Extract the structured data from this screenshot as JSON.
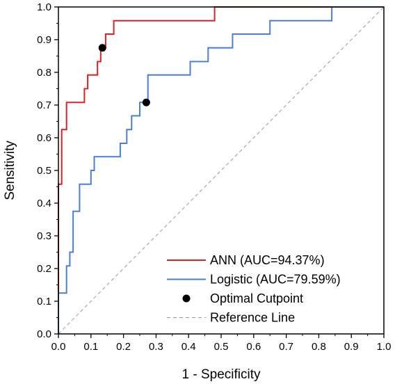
{
  "chart_data": {
    "type": "line",
    "xlabel": "1 - Specificity",
    "ylabel": "Sensitivity",
    "xlim": [
      0.0,
      1.0
    ],
    "ylim": [
      0.0,
      1.0
    ],
    "x_ticks": [
      "0.0",
      "0.1",
      "0.2",
      "0.3",
      "0.4",
      "0.5",
      "0.6",
      "0.7",
      "0.8",
      "0.9",
      "1.0"
    ],
    "y_ticks": [
      "0.0",
      "0.1",
      "0.2",
      "0.3",
      "0.4",
      "0.5",
      "0.6",
      "0.7",
      "0.8",
      "0.9",
      "1.0"
    ],
    "grid": false,
    "legend_position": "bottom-right",
    "series": [
      {
        "name": "ANN (AUC=94.37%)",
        "color": "#e02020",
        "x": [
          0.0,
          0.0,
          0.01,
          0.01,
          0.015,
          0.015,
          0.025,
          0.025,
          0.08,
          0.08,
          0.09,
          0.09,
          0.12,
          0.12,
          0.13,
          0.13,
          0.145,
          0.145,
          0.17,
          0.17,
          0.48,
          0.48,
          1.0
        ],
        "y": [
          0.0,
          0.458,
          0.458,
          0.625,
          0.625,
          0.625,
          0.625,
          0.708,
          0.708,
          0.75,
          0.75,
          0.792,
          0.792,
          0.833,
          0.833,
          0.875,
          0.875,
          0.917,
          0.917,
          0.958,
          0.958,
          1.0,
          1.0
        ]
      },
      {
        "name": "Logistic (AUC=79.59%)",
        "color": "#4a7fd6",
        "x": [
          0.0,
          0.0,
          0.025,
          0.025,
          0.035,
          0.035,
          0.045,
          0.045,
          0.065,
          0.065,
          0.1,
          0.1,
          0.11,
          0.11,
          0.19,
          0.19,
          0.21,
          0.21,
          0.225,
          0.225,
          0.25,
          0.25,
          0.275,
          0.275,
          0.405,
          0.405,
          0.46,
          0.46,
          0.535,
          0.535,
          0.65,
          0.65,
          0.84,
          0.84,
          1.0
        ],
        "y": [
          0.0,
          0.125,
          0.125,
          0.208,
          0.208,
          0.25,
          0.25,
          0.375,
          0.375,
          0.458,
          0.458,
          0.5,
          0.5,
          0.542,
          0.542,
          0.583,
          0.583,
          0.625,
          0.625,
          0.667,
          0.667,
          0.708,
          0.708,
          0.792,
          0.792,
          0.833,
          0.833,
          0.875,
          0.875,
          0.917,
          0.917,
          0.958,
          0.958,
          1.0,
          1.0
        ]
      },
      {
        "name": "Optimal Cutpoint",
        "color": "#000000",
        "type": "scatter",
        "x": [
          0.135,
          0.27
        ],
        "y": [
          0.875,
          0.708
        ]
      },
      {
        "name": "Reference Line",
        "color": "#999999",
        "style": "dashed",
        "x": [
          0.0,
          1.0
        ],
        "y": [
          0.0,
          1.0
        ]
      }
    ]
  }
}
